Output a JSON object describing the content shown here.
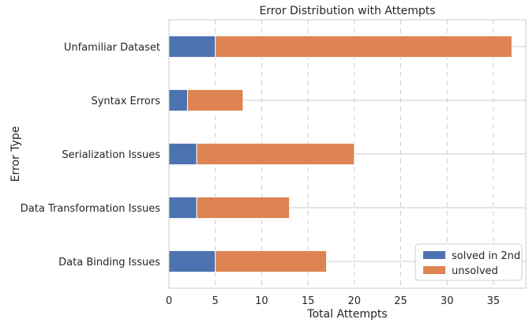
{
  "chart_data": {
    "type": "bar",
    "orientation": "horizontal",
    "stacked": true,
    "title": "Error Distribution with Attempts",
    "xlabel": "Total Attempts",
    "ylabel": "Error Type",
    "categories": [
      "Unfamiliar Dataset",
      "Syntax Errors",
      "Serialization Issues",
      "Data Transformation Issues",
      "Data Binding Issues"
    ],
    "series": [
      {
        "name": "solved in 2nd",
        "values": [
          5,
          2,
          3,
          3,
          5
        ],
        "color": "#4c72b0"
      },
      {
        "name": "unsolved",
        "values": [
          32,
          6,
          17,
          10,
          12
        ],
        "color": "#dd8452"
      }
    ],
    "xlim": [
      0,
      38.5
    ],
    "xticks": [
      "0",
      "5",
      "10",
      "15",
      "20",
      "25",
      "30",
      "35"
    ],
    "grid": {
      "x": "dashed",
      "y": "solid"
    },
    "legend_position": "lower-right"
  }
}
